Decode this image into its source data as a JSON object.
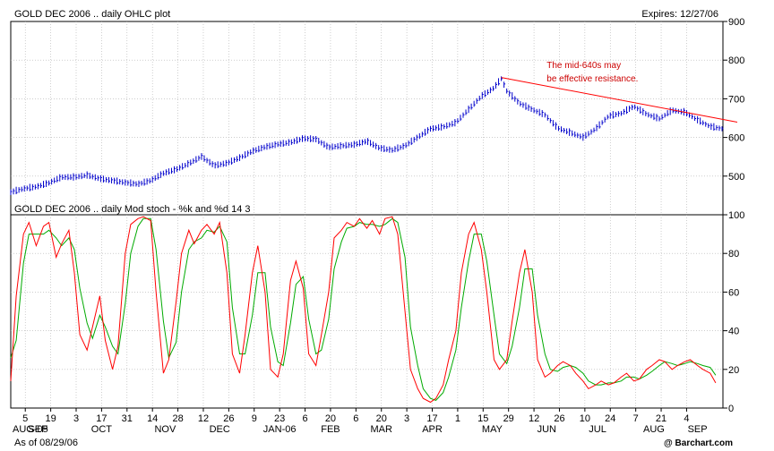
{
  "header": {
    "title": "GOLD DEC 2006 .. daily OHLC plot",
    "expires": "Expires: 12/27/06"
  },
  "footer": {
    "as_of": "As of 08/29/06",
    "logo": "@ Barchart.com"
  },
  "colors": {
    "price": "#0000cc",
    "k_line": "#ff0000",
    "d_line": "#00aa00",
    "trendline": "#ff0000",
    "annotation": "#cc0000",
    "grid": "#b0b0b0"
  },
  "chart_data": [
    {
      "type": "ohlc",
      "title": "GOLD DEC 2006 .. daily OHLC plot",
      "ylim": [
        400,
        900
      ],
      "yticks": [
        500,
        600,
        700,
        800,
        900
      ],
      "grid": true,
      "x_range_days": [
        0,
        392
      ],
      "annotation": {
        "text_lines": [
          "The mid-640s may",
          "be effective resistance."
        ],
        "x_day": 295,
        "y": 780
      },
      "trendline": {
        "start": [
          270,
          755
        ],
        "end": [
          392,
          635
        ]
      },
      "series": [
        {
          "name": "GOLD DEC 2006",
          "points": [
            [
              0,
              458
            ],
            [
              7,
              467
            ],
            [
              14,
              472
            ],
            [
              21,
              482
            ],
            [
              28,
              497
            ],
            [
              35,
              497
            ],
            [
              42,
              502
            ],
            [
              49,
              493
            ],
            [
              56,
              488
            ],
            [
              63,
              483
            ],
            [
              70,
              479
            ],
            [
              77,
              488
            ],
            [
              84,
              507
            ],
            [
              91,
              517
            ],
            [
              98,
              532
            ],
            [
              105,
              550
            ],
            [
              112,
              527
            ],
            [
              119,
              533
            ],
            [
              126,
              547
            ],
            [
              133,
              564
            ],
            [
              140,
              575
            ],
            [
              147,
              582
            ],
            [
              154,
              587
            ],
            [
              161,
              597
            ],
            [
              168,
              595
            ],
            [
              175,
              574
            ],
            [
              182,
              578
            ],
            [
              189,
              581
            ],
            [
              196,
              590
            ],
            [
              203,
              572
            ],
            [
              210,
              567
            ],
            [
              217,
              578
            ],
            [
              224,
              600
            ],
            [
              231,
              622
            ],
            [
              238,
              627
            ],
            [
              245,
              638
            ],
            [
              252,
              672
            ],
            [
              259,
              706
            ],
            [
              266,
              728
            ],
            [
              270,
              752
            ],
            [
              273,
              720
            ],
            [
              280,
              688
            ],
            [
              287,
              672
            ],
            [
              294,
              658
            ],
            [
              301,
              624
            ],
            [
              308,
              612
            ],
            [
              315,
              600
            ],
            [
              322,
              622
            ],
            [
              329,
              655
            ],
            [
              336,
              662
            ],
            [
              343,
              680
            ],
            [
              350,
              660
            ],
            [
              357,
              648
            ],
            [
              364,
              670
            ],
            [
              371,
              665
            ],
            [
              378,
              645
            ],
            [
              385,
              628
            ],
            [
              392,
              622
            ]
          ]
        }
      ]
    },
    {
      "type": "line",
      "title": "GOLD DEC 2006 .. daily Mod stoch - %k and %d   14   3",
      "ylim": [
        0,
        100
      ],
      "yticks": [
        0,
        20,
        40,
        60,
        80,
        100
      ],
      "grid": true,
      "x": [
        0,
        3,
        7,
        10,
        14,
        18,
        21,
        25,
        28,
        32,
        35,
        38,
        42,
        45,
        49,
        52,
        56,
        59,
        63,
        66,
        70,
        73,
        77,
        80,
        84,
        87,
        91,
        94,
        98,
        101,
        105,
        108,
        112,
        115,
        119,
        122,
        126,
        129,
        133,
        136,
        140,
        143,
        147,
        150,
        154,
        157,
        161,
        164,
        168,
        171,
        175,
        178,
        182,
        185,
        189,
        192,
        196,
        199,
        203,
        206,
        210,
        213,
        217,
        220,
        224,
        227,
        231,
        234,
        238,
        241,
        245,
        248,
        252,
        255,
        259,
        262,
        266,
        269,
        273,
        276,
        280,
        283,
        287,
        290,
        294,
        297,
        301,
        304,
        308,
        311,
        315,
        318,
        322,
        325,
        329,
        332,
        336,
        339,
        343,
        346,
        350,
        353,
        357,
        360,
        364,
        367,
        371,
        374,
        378,
        381,
        385,
        388
      ],
      "series": [
        {
          "name": "%k",
          "values": [
            14,
            58,
            90,
            96,
            84,
            94,
            96,
            78,
            85,
            92,
            70,
            38,
            30,
            42,
            58,
            35,
            20,
            32,
            80,
            95,
            98,
            99,
            97,
            60,
            18,
            25,
            55,
            80,
            92,
            85,
            92,
            95,
            90,
            96,
            70,
            28,
            18,
            38,
            70,
            84,
            60,
            20,
            16,
            28,
            66,
            76,
            62,
            28,
            22,
            38,
            60,
            88,
            92,
            96,
            94,
            98,
            93,
            97,
            90,
            98,
            99,
            90,
            50,
            20,
            10,
            5,
            3,
            5,
            12,
            25,
            40,
            70,
            90,
            96,
            82,
            60,
            25,
            20,
            25,
            45,
            70,
            82,
            60,
            25,
            16,
            18,
            22,
            24,
            22,
            18,
            14,
            10,
            12,
            14,
            12,
            13,
            16,
            18,
            14,
            15,
            20,
            22,
            25,
            24,
            20,
            22,
            24,
            25,
            22,
            20,
            18,
            13
          ]
        },
        {
          "name": "%d",
          "values": [
            26,
            35,
            75,
            90,
            90,
            90,
            92,
            88,
            84,
            88,
            82,
            62,
            44,
            36,
            48,
            42,
            32,
            28,
            54,
            80,
            94,
            98,
            98,
            82,
            45,
            26,
            34,
            60,
            82,
            86,
            88,
            92,
            91,
            94,
            86,
            52,
            28,
            28,
            48,
            70,
            70,
            42,
            24,
            22,
            44,
            64,
            68,
            46,
            28,
            30,
            46,
            72,
            86,
            93,
            94,
            96,
            95,
            95,
            94,
            95,
            98,
            96,
            78,
            42,
            22,
            10,
            5,
            4,
            8,
            16,
            30,
            52,
            76,
            90,
            90,
            76,
            48,
            28,
            23,
            32,
            52,
            72,
            72,
            48,
            28,
            20,
            19,
            21,
            22,
            21,
            18,
            14,
            12,
            12,
            13,
            13,
            14,
            16,
            16,
            15,
            17,
            19,
            22,
            24,
            23,
            22,
            23,
            24,
            23,
            22,
            21,
            17
          ]
        }
      ]
    },
    {
      "type": "x_axis",
      "tick_labels": [
        {
          "day": 8,
          "label": "5"
        },
        {
          "day": 22,
          "label": "19"
        },
        {
          "day": 36,
          "label": "3"
        },
        {
          "day": 50,
          "label": "17"
        },
        {
          "day": 64,
          "label": "31"
        },
        {
          "day": 78,
          "label": "14"
        },
        {
          "day": 92,
          "label": "28"
        },
        {
          "day": 106,
          "label": "12"
        },
        {
          "day": 120,
          "label": "26"
        },
        {
          "day": 134,
          "label": "9"
        },
        {
          "day": 148,
          "label": "23"
        },
        {
          "day": 162,
          "label": "6"
        },
        {
          "day": 176,
          "label": "20"
        },
        {
          "day": 190,
          "label": "6"
        },
        {
          "day": 204,
          "label": "20"
        },
        {
          "day": 218,
          "label": "3"
        },
        {
          "day": 232,
          "label": "17"
        },
        {
          "day": 246,
          "label": "1"
        },
        {
          "day": 260,
          "label": "15"
        },
        {
          "day": 274,
          "label": "29"
        },
        {
          "day": 288,
          "label": "12"
        },
        {
          "day": 302,
          "label": "26"
        },
        {
          "day": 316,
          "label": "10"
        },
        {
          "day": 330,
          "label": "24"
        },
        {
          "day": 344,
          "label": "7"
        },
        {
          "day": 358,
          "label": "21"
        },
        {
          "day": 372,
          "label": "4"
        }
      ],
      "month_labels": [
        {
          "day": 1,
          "label": "AUG-05"
        },
        {
          "day": 15,
          "label": "SEP"
        },
        {
          "day": 50,
          "label": "OCT"
        },
        {
          "day": 85,
          "label": "NOV"
        },
        {
          "day": 115,
          "label": "DEC"
        },
        {
          "day": 148,
          "label": "JAN-06"
        },
        {
          "day": 176,
          "label": "FEB"
        },
        {
          "day": 204,
          "label": "MAR"
        },
        {
          "day": 232,
          "label": "APR"
        },
        {
          "day": 265,
          "label": "MAY"
        },
        {
          "day": 295,
          "label": "JUN"
        },
        {
          "day": 323,
          "label": "JUL"
        },
        {
          "day": 354,
          "label": "AUG"
        },
        {
          "day": 378,
          "label": "SEP"
        }
      ]
    }
  ]
}
